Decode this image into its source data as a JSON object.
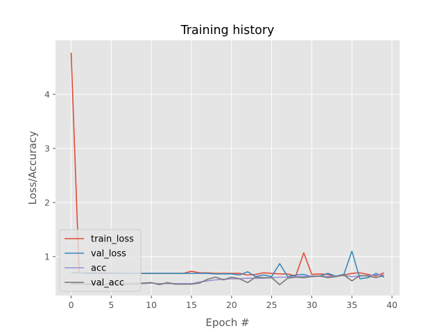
{
  "chart_data": {
    "type": "line",
    "title": "Training history",
    "xlabel": "Epoch #",
    "ylabel": "Loss/Accuracy",
    "xlim": [
      -1.95,
      40.95
    ],
    "ylim": [
      0.28,
      5.0
    ],
    "xticks": [
      0,
      5,
      10,
      15,
      20,
      25,
      30,
      35,
      40
    ],
    "yticks": [
      1,
      2,
      3,
      4
    ],
    "grid": true,
    "legend_position": "lower-left",
    "x": [
      0,
      1,
      2,
      3,
      4,
      5,
      6,
      7,
      8,
      9,
      10,
      11,
      12,
      13,
      14,
      15,
      16,
      17,
      18,
      19,
      20,
      21,
      22,
      23,
      24,
      25,
      26,
      27,
      28,
      29,
      30,
      31,
      32,
      33,
      34,
      35,
      36,
      37,
      38,
      39
    ],
    "series": [
      {
        "name": "train_loss",
        "color": "#E24A33",
        "values": [
          4.77,
          0.7,
          0.7,
          0.7,
          0.7,
          0.7,
          0.69,
          0.69,
          0.69,
          0.69,
          0.69,
          0.69,
          0.69,
          0.69,
          0.69,
          0.73,
          0.7,
          0.7,
          0.69,
          0.69,
          0.69,
          0.69,
          0.66,
          0.67,
          0.7,
          0.69,
          0.68,
          0.68,
          0.64,
          1.07,
          0.67,
          0.68,
          0.67,
          0.63,
          0.66,
          0.69,
          0.7,
          0.67,
          0.64,
          0.7
        ]
      },
      {
        "name": "val_loss",
        "color": "#348ABD",
        "values": [
          0.7,
          0.7,
          0.69,
          0.69,
          0.69,
          0.69,
          0.69,
          0.69,
          0.69,
          0.69,
          0.69,
          0.69,
          0.69,
          0.69,
          0.69,
          0.69,
          0.69,
          0.69,
          0.68,
          0.68,
          0.68,
          0.66,
          0.72,
          0.63,
          0.66,
          0.63,
          0.87,
          0.63,
          0.66,
          0.67,
          0.63,
          0.64,
          0.69,
          0.64,
          0.67,
          1.1,
          0.59,
          0.61,
          0.69,
          0.62
        ]
      },
      {
        "name": "acc",
        "color": "#988ED5",
        "values": [
          0.49,
          0.49,
          0.5,
          0.49,
          0.48,
          0.5,
          0.51,
          0.5,
          0.49,
          0.5,
          0.51,
          0.5,
          0.5,
          0.5,
          0.5,
          0.5,
          0.53,
          0.55,
          0.57,
          0.58,
          0.59,
          0.59,
          0.6,
          0.6,
          0.6,
          0.61,
          0.62,
          0.62,
          0.63,
          0.63,
          0.64,
          0.64,
          0.63,
          0.64,
          0.65,
          0.63,
          0.64,
          0.65,
          0.66,
          0.66
        ]
      },
      {
        "name": "val_acc",
        "color": "#777777",
        "values": [
          0.5,
          0.51,
          0.48,
          0.5,
          0.47,
          0.52,
          0.5,
          0.49,
          0.5,
          0.51,
          0.52,
          0.48,
          0.52,
          0.49,
          0.49,
          0.49,
          0.51,
          0.58,
          0.62,
          0.57,
          0.62,
          0.59,
          0.52,
          0.62,
          0.61,
          0.61,
          0.48,
          0.6,
          0.62,
          0.61,
          0.63,
          0.64,
          0.61,
          0.63,
          0.66,
          0.55,
          0.65,
          0.64,
          0.61,
          0.65
        ]
      }
    ]
  }
}
